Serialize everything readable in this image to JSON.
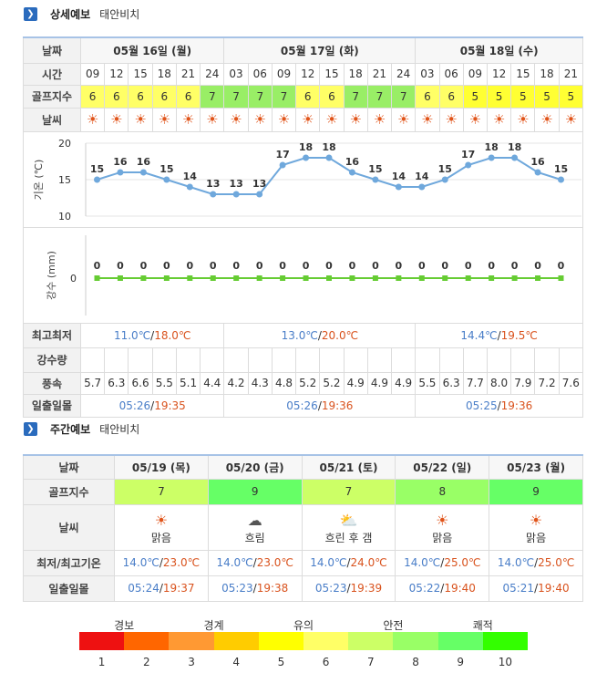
{
  "detailed": {
    "title": "상세예보",
    "location": "태안비치",
    "labels": {
      "date": "날짜",
      "time": "시간",
      "golf": "골프지수",
      "weather": "날씨",
      "temp_axis": "기온 (℃)",
      "rain_axis": "강수 (mm)",
      "minmax": "최고최저",
      "rain": "강수량",
      "wind": "풍속",
      "sun": "일출일몰"
    },
    "days": [
      {
        "label": "05월 16일 (월)",
        "minmax_low": "11.0℃",
        "minmax_high": "18.0℃",
        "sunrise": "05:26",
        "sunset": "19:35"
      },
      {
        "label": "05월 17일 (화)",
        "minmax_low": "13.0℃",
        "minmax_high": "20.0℃",
        "sunrise": "05:26",
        "sunset": "19:36"
      },
      {
        "label": "05월 18일 (수)",
        "minmax_low": "14.4℃",
        "minmax_high": "19.5℃",
        "sunrise": "05:25",
        "sunset": "19:36"
      }
    ],
    "hours": [
      "09",
      "12",
      "15",
      "18",
      "21",
      "24",
      "03",
      "06",
      "09",
      "12",
      "15",
      "18",
      "21",
      "24",
      "03",
      "06",
      "09",
      "12",
      "15",
      "18",
      "21"
    ],
    "golf": [
      6,
      6,
      6,
      6,
      6,
      7,
      7,
      7,
      7,
      6,
      6,
      7,
      7,
      7,
      6,
      6,
      5,
      5,
      5,
      5,
      5
    ],
    "golf_colors": {
      "5": "#ffff33",
      "6": "#ffff66",
      "7": "#99ee66"
    },
    "wind": [
      "5.7",
      "6.3",
      "6.6",
      "5.5",
      "5.1",
      "4.4",
      "4.2",
      "4.3",
      "4.8",
      "5.2",
      "5.2",
      "4.9",
      "4.9",
      "4.9",
      "5.5",
      "6.3",
      "7.7",
      "8.0",
      "7.9",
      "7.2",
      "7.6"
    ],
    "weather_icon": "sun-icon"
  },
  "chart_data": [
    {
      "type": "line",
      "ylabel": "기온 (℃)",
      "ylim": [
        10,
        20
      ],
      "yticks": [
        "20",
        "15",
        "10"
      ],
      "x": [
        "09",
        "12",
        "15",
        "18",
        "21",
        "24",
        "03",
        "06",
        "09",
        "12",
        "15",
        "18",
        "21",
        "24",
        "03",
        "06",
        "09",
        "12",
        "15",
        "18",
        "21"
      ],
      "values": [
        15,
        16,
        16,
        15,
        14,
        13,
        13,
        13,
        17,
        18,
        18,
        16,
        15,
        14,
        14,
        15,
        17,
        18,
        18,
        16,
        15
      ],
      "color": "#6fa8dc"
    },
    {
      "type": "line",
      "ylabel": "강수 (mm)",
      "yticks": [
        "0"
      ],
      "x": [
        "09",
        "12",
        "15",
        "18",
        "21",
        "24",
        "03",
        "06",
        "09",
        "12",
        "15",
        "18",
        "21",
        "24",
        "03",
        "06",
        "09",
        "12",
        "15",
        "18",
        "21"
      ],
      "values": [
        0,
        0,
        0,
        0,
        0,
        0,
        0,
        0,
        0,
        0,
        0,
        0,
        0,
        0,
        0,
        0,
        0,
        0,
        0,
        0,
        0
      ],
      "color": "#66cc33"
    }
  ],
  "weekly": {
    "title": "주간예보",
    "location": "태안비치",
    "labels": {
      "date": "날짜",
      "golf": "골프지수",
      "weather": "날씨",
      "temp": "최저/최고기온",
      "sun": "일출일몰"
    },
    "days": [
      {
        "date": "05/19 (목)",
        "golf": "7",
        "icon": "sun-icon",
        "weather": "맑음",
        "low": "14.0℃",
        "high": "23.0℃",
        "sunrise": "05:24",
        "sunset": "19:37"
      },
      {
        "date": "05/20 (금)",
        "golf": "9",
        "icon": "cloud-icon",
        "weather": "흐림",
        "low": "14.0℃",
        "high": "23.0℃",
        "sunrise": "05:23",
        "sunset": "19:38"
      },
      {
        "date": "05/21 (토)",
        "golf": "7",
        "icon": "cloud-rain-icon",
        "weather": "흐린 후 갬",
        "low": "14.0℃",
        "high": "24.0℃",
        "sunrise": "05:23",
        "sunset": "19:39"
      },
      {
        "date": "05/22 (일)",
        "golf": "8",
        "icon": "sun-icon",
        "weather": "맑음",
        "low": "14.0℃",
        "high": "25.0℃",
        "sunrise": "05:22",
        "sunset": "19:40"
      },
      {
        "date": "05/23 (월)",
        "golf": "9",
        "icon": "sun-icon",
        "weather": "맑음",
        "low": "14.0℃",
        "high": "25.0℃",
        "sunrise": "05:21",
        "sunset": "19:40"
      }
    ]
  },
  "legend": {
    "labels": [
      "경보",
      "경계",
      "유의",
      "안전",
      "쾌적"
    ],
    "numbers": [
      "1",
      "2",
      "3",
      "4",
      "5",
      "6",
      "7",
      "8",
      "9",
      "10"
    ],
    "colors": [
      "#ee1111",
      "#ff6600",
      "#ff9933",
      "#ffcc00",
      "#ffff00",
      "#ffff66",
      "#ccff66",
      "#99ff66",
      "#66ff66",
      "#33ff00"
    ]
  }
}
